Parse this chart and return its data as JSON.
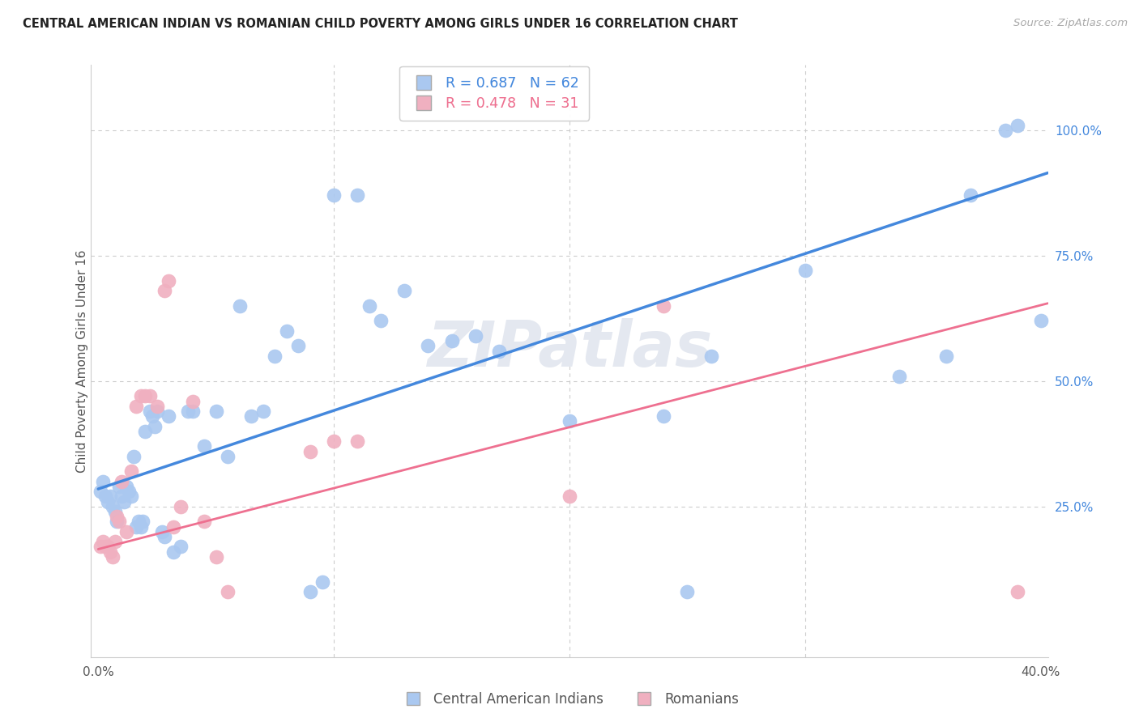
{
  "title": "CENTRAL AMERICAN INDIAN VS ROMANIAN CHILD POVERTY AMONG GIRLS UNDER 16 CORRELATION CHART",
  "source": "Source: ZipAtlas.com",
  "ylabel": "Child Poverty Among Girls Under 16",
  "xlim": [
    -0.003,
    0.403
  ],
  "ylim": [
    -0.05,
    1.13
  ],
  "xticks": [
    0.0,
    0.1,
    0.2,
    0.3,
    0.4
  ],
  "xtick_labels": [
    "0.0%",
    "",
    "",
    "",
    "40.0%"
  ],
  "ytick_right_vals": [
    0.25,
    0.5,
    0.75,
    1.0
  ],
  "ytick_right_labels": [
    "25.0%",
    "50.0%",
    "75.0%",
    "100.0%"
  ],
  "blue_color": "#aac8f0",
  "pink_color": "#f0b0c0",
  "blue_line_color": "#4488dd",
  "pink_line_color": "#ee7090",
  "blue_scatter_x": [
    0.001,
    0.002,
    0.003,
    0.004,
    0.005,
    0.006,
    0.007,
    0.008,
    0.009,
    0.01,
    0.011,
    0.012,
    0.013,
    0.014,
    0.015,
    0.016,
    0.017,
    0.018,
    0.019,
    0.02,
    0.022,
    0.023,
    0.024,
    0.025,
    0.027,
    0.028,
    0.03,
    0.032,
    0.035,
    0.038,
    0.04,
    0.045,
    0.05,
    0.055,
    0.06,
    0.065,
    0.07,
    0.075,
    0.08,
    0.085,
    0.09,
    0.095,
    0.1,
    0.11,
    0.115,
    0.12,
    0.13,
    0.14,
    0.15,
    0.16,
    0.17,
    0.2,
    0.24,
    0.25,
    0.26,
    0.3,
    0.34,
    0.36,
    0.37,
    0.385,
    0.39,
    0.4
  ],
  "blue_scatter_y": [
    0.28,
    0.3,
    0.27,
    0.26,
    0.27,
    0.25,
    0.24,
    0.22,
    0.29,
    0.27,
    0.26,
    0.29,
    0.28,
    0.27,
    0.35,
    0.21,
    0.22,
    0.21,
    0.22,
    0.4,
    0.44,
    0.43,
    0.41,
    0.44,
    0.2,
    0.19,
    0.43,
    0.16,
    0.17,
    0.44,
    0.44,
    0.37,
    0.44,
    0.35,
    0.65,
    0.43,
    0.44,
    0.55,
    0.6,
    0.57,
    0.08,
    0.1,
    0.87,
    0.87,
    0.65,
    0.62,
    0.68,
    0.57,
    0.58,
    0.59,
    0.56,
    0.42,
    0.43,
    0.08,
    0.55,
    0.72,
    0.51,
    0.55,
    0.87,
    1.0,
    1.01,
    0.62
  ],
  "pink_scatter_x": [
    0.001,
    0.002,
    0.003,
    0.004,
    0.005,
    0.006,
    0.007,
    0.008,
    0.009,
    0.01,
    0.012,
    0.014,
    0.016,
    0.018,
    0.02,
    0.022,
    0.025,
    0.028,
    0.03,
    0.032,
    0.035,
    0.04,
    0.045,
    0.05,
    0.055,
    0.09,
    0.1,
    0.11,
    0.2,
    0.24,
    0.39
  ],
  "pink_scatter_y": [
    0.17,
    0.18,
    0.17,
    0.17,
    0.16,
    0.15,
    0.18,
    0.23,
    0.22,
    0.3,
    0.2,
    0.32,
    0.45,
    0.47,
    0.47,
    0.47,
    0.45,
    0.68,
    0.7,
    0.21,
    0.25,
    0.46,
    0.22,
    0.15,
    0.08,
    0.36,
    0.38,
    0.38,
    0.27,
    0.65,
    0.08
  ],
  "blue_line_x": [
    0.0,
    0.403
  ],
  "blue_line_y": [
    0.285,
    0.915
  ],
  "pink_line_x": [
    0.0,
    0.403
  ],
  "pink_line_y": [
    0.165,
    0.655
  ],
  "watermark": "ZIPatlas",
  "background_color": "#ffffff",
  "grid_color": "#cccccc",
  "grid_linestyle": "--"
}
